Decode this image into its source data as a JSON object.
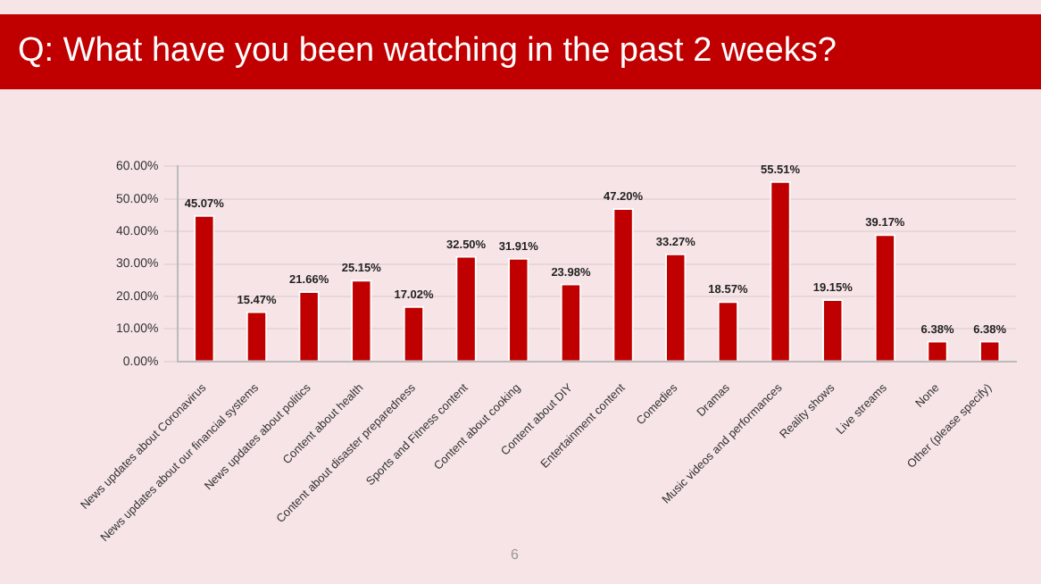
{
  "chart_data": {
    "type": "bar",
    "title": "Q: What have you been watching in the past 2 weeks?",
    "categories": [
      "News updates about Coronavirus",
      "News updates about our financial systems",
      "News updates about politics",
      "Content about health",
      "Content about disaster preparedness",
      "Sports and Fitness content",
      "Content about cooking",
      "Content about DIY",
      "Entertainment content",
      "Comedies",
      "Dramas",
      "Music videos and performances",
      "Reality shows",
      "Live streams",
      "None",
      "Other (please specify)"
    ],
    "values": [
      45.07,
      15.47,
      21.66,
      25.15,
      17.02,
      32.5,
      31.91,
      23.98,
      47.2,
      33.27,
      18.57,
      55.51,
      19.15,
      39.17,
      6.38,
      6.38
    ],
    "value_labels": [
      "45.07%",
      "15.47%",
      "21.66%",
      "25.15%",
      "17.02%",
      "32.50%",
      "31.91%",
      "23.98%",
      "47.20%",
      "33.27%",
      "18.57%",
      "55.51%",
      "19.15%",
      "39.17%",
      "6.38%",
      "6.38%"
    ],
    "color": "#c00000",
    "ylim": [
      0,
      60
    ],
    "yticks": [
      {
        "value": 0,
        "label": "0.00%"
      },
      {
        "value": 10,
        "label": "10.00%"
      },
      {
        "value": 20,
        "label": "20.00%"
      },
      {
        "value": 30,
        "label": "30.00%"
      },
      {
        "value": 40,
        "label": "40.00%"
      },
      {
        "value": 50,
        "label": "50.00%"
      },
      {
        "value": 60,
        "label": "60.00%"
      }
    ],
    "grid": "y",
    "annotations": [
      "6"
    ]
  }
}
